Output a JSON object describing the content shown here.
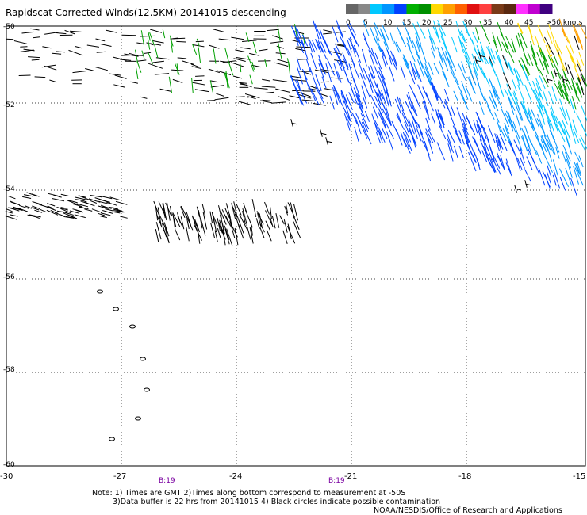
{
  "title": "Rapidscat Corrected Winds(12.5KM) 20141015 descending",
  "legend": {
    "colors": [
      "#666666",
      "#888888",
      "#00c8ff",
      "#0096ff",
      "#0040ff",
      "#00b000",
      "#009000",
      "#ffd800",
      "#ffa000",
      "#ff6000",
      "#e01010",
      "#ff4040",
      "#7a3a18",
      "#5a2810",
      "#ff30ff",
      "#c000d0",
      "#400080"
    ],
    "labels": [
      "0",
      "5",
      "10",
      "15",
      "20",
      "25",
      "30",
      "35",
      "40",
      "45",
      ">50 knots"
    ]
  },
  "axes": {
    "lon_labels": [
      "-30",
      "-27",
      "-24",
      "-21",
      "-18",
      "-15"
    ],
    "lat_labels": [
      "-50",
      "-52",
      "-54",
      "-56",
      "-58",
      "-60"
    ]
  },
  "time_marks": [
    "B:19",
    "B:19"
  ],
  "notes": {
    "line1": "Note: 1) Times are GMT 2)Times along bottom correspond to measurement at -50S",
    "line2": "3)Data buffer is 22 hrs from 20141015 4) Black circles indicate possible contamination",
    "credit": "NOAA/NESDIS/Office of Research and Applications"
  }
}
